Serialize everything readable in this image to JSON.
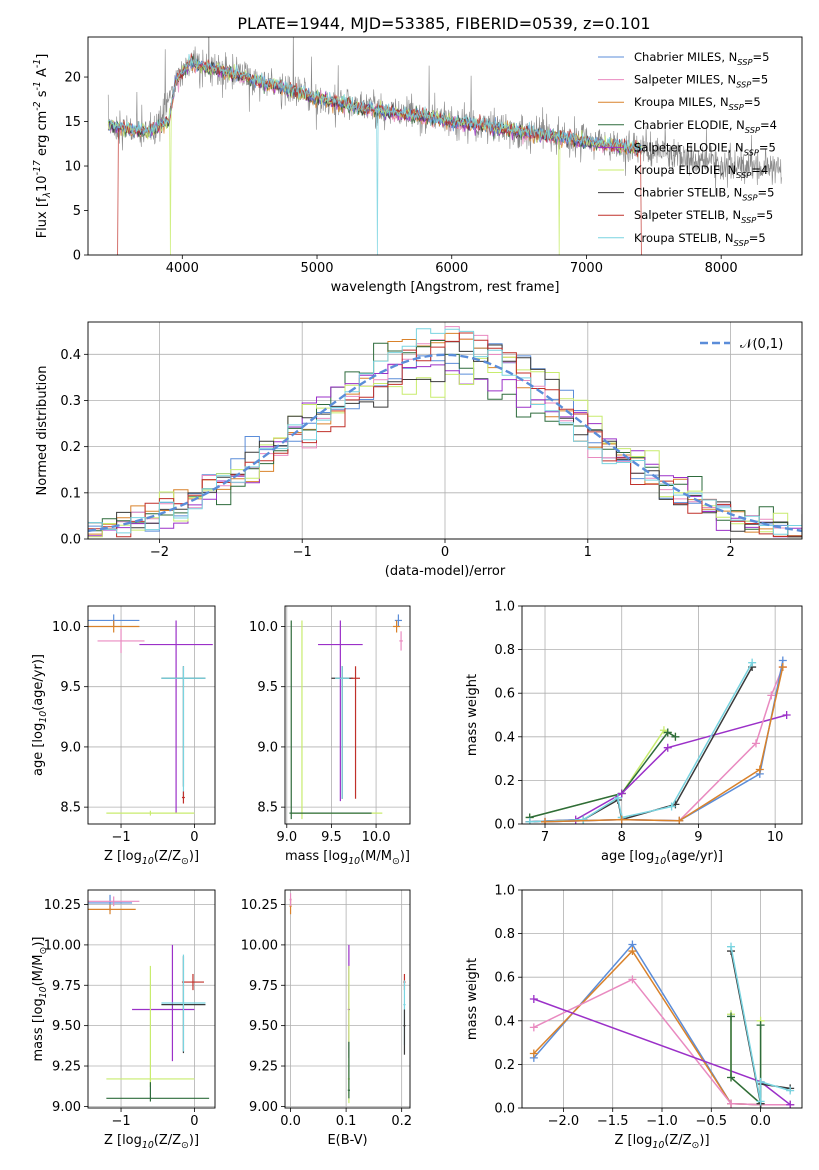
{
  "figure_title": "PLATE=1944, MJD=53385, FIBERID=0539, z=0.101",
  "colors": {
    "Chabrier MILES": "#5b8dd9",
    "Salpeter MILES": "#e98ac0",
    "Kroupa MILES": "#d9822b",
    "Chabrier ELODIE": "#2e6b3c",
    "Salpeter ELODIE": "#9b30c8",
    "Kroupa ELODIE": "#c8ec6e",
    "Chabrier STELIB": "#3a3a3a",
    "Salpeter STELIB": "#c0302a",
    "Kroupa STELIB": "#79d4e0",
    "gaussian": "#5b8dd9"
  },
  "chart_data": [
    {
      "id": "spectrum",
      "type": "line",
      "title": "PLATE=1944, MJD=53385, FIBERID=0539, z=0.101",
      "xlabel": "wavelength [Angstrom, rest frame]",
      "ylabel": "Flux [f$_\\lambda$10$^{-17}$ erg cm$^{-2}$ s$^{-1}$ A$^{-1}$]",
      "xlim": [
        3300,
        8600
      ],
      "ylim": [
        0,
        24.5
      ],
      "xticks": [
        4000,
        5000,
        6000,
        7000,
        8000
      ],
      "yticks": [
        0,
        5,
        10,
        15,
        20
      ],
      "grid": false,
      "legend_position": "top-right",
      "legend": [
        "Chabrier MILES, N$_{SSP}$=5",
        "Salpeter MILES, N$_{SSP}$=5",
        "Kroupa MILES, N$_{SSP}$=5",
        "Chabrier ELODIE, N$_{SSP}$=4",
        "Salpeter ELODIE, N$_{SSP}$=5",
        "Kroupa ELODIE, N$_{SSP}$=4",
        "Chabrier STELIB, N$_{SSP}$=5",
        "Salpeter STELIB, N$_{SSP}$=5",
        "Kroupa STELIB, N$_{SSP}$=5"
      ],
      "continuum": {
        "x": [
          3450,
          3600,
          3750,
          3900,
          3950,
          4050,
          4200,
          4400,
          4600,
          4800,
          5000,
          5200,
          5400,
          5600,
          5800,
          6000,
          6200,
          6400,
          6600,
          6800,
          7000,
          7200,
          7400,
          7600
        ],
        "y": [
          14.6,
          14.2,
          13.8,
          15.0,
          19.5,
          21.6,
          21.0,
          20.3,
          19.4,
          18.6,
          17.6,
          16.9,
          16.4,
          15.9,
          15.5,
          15.0,
          14.6,
          14.1,
          13.6,
          13.2,
          12.7,
          12.3,
          11.9,
          11.4
        ]
      },
      "observed_continuum": {
        "x": [
          3450,
          3600,
          3800,
          3950,
          4050,
          4300,
          4600,
          5000,
          5500,
          6000,
          6500,
          7000,
          7500,
          8000,
          8400
        ],
        "y": [
          14.5,
          14.0,
          13.8,
          19.5,
          21.5,
          20.8,
          19.5,
          17.7,
          16.2,
          15.0,
          13.9,
          12.8,
          11.4,
          10.3,
          9.8
        ]
      },
      "model_drops": [
        {
          "series": "Salpeter STELIB",
          "x": 3520
        },
        {
          "series": "Salpeter STELIB",
          "x": 7410
        },
        {
          "series": "Kroupa ELODIE",
          "x": 3910
        },
        {
          "series": "Kroupa ELODIE",
          "x": 6800
        },
        {
          "series": "Kroupa STELIB",
          "x": 5450
        }
      ]
    },
    {
      "id": "residuals",
      "type": "histogram",
      "xlabel": "(data-model)/error",
      "ylabel": "Normed distribution",
      "xlim": [
        -2.5,
        2.5
      ],
      "ylim": [
        0,
        0.47
      ],
      "xticks": [
        -2,
        -1,
        0,
        1,
        2
      ],
      "yticks": [
        0.0,
        0.1,
        0.2,
        0.3,
        0.4
      ],
      "grid": true,
      "legend_position": "top-right",
      "legend": [
        "$\\mathcal{N}(0,1)$"
      ],
      "bin_width": 0.1
    },
    {
      "id": "age_vs_Z",
      "type": "errorbar",
      "xlabel": "Z [log$_{10}$(Z/Z$_\\odot$)]",
      "ylabel": "age  [log$_{10}$(age/yr)]",
      "xlim": [
        -1.45,
        0.28
      ],
      "ylim": [
        8.36,
        10.17
      ],
      "xticks": [
        -1,
        0
      ],
      "yticks": [
        8.5,
        9.0,
        9.5,
        10.0
      ],
      "grid": true,
      "points": [
        {
          "series": "Chabrier MILES",
          "x": -1.1,
          "y": 10.05,
          "xerr": [
            0.35,
            0.35
          ],
          "yerr": [
            0.05,
            0.05
          ]
        },
        {
          "series": "Kroupa MILES",
          "x": -1.1,
          "y": 10.0,
          "xerr": [
            0.35,
            0.35
          ],
          "yerr": [
            0.05,
            0.05
          ]
        },
        {
          "series": "Salpeter MILES",
          "x": -1.0,
          "y": 9.88,
          "xerr": [
            0.32,
            0.32
          ],
          "yerr": [
            0.1,
            0.1
          ]
        },
        {
          "series": "Salpeter ELODIE",
          "x": -0.25,
          "y": 9.85,
          "xerr": [
            0.5,
            0.5
          ],
          "yerr": [
            1.4,
            0.2
          ]
        },
        {
          "series": "Chabrier STELIB",
          "x": -0.15,
          "y": 9.57,
          "xerr": [
            0.3,
            0.3
          ],
          "yerr": [
            0.9,
            0.1
          ]
        },
        {
          "series": "Kroupa STELIB",
          "x": -0.15,
          "y": 9.57,
          "xerr": [
            0.3,
            0.3
          ],
          "yerr": [
            1.0,
            0.1
          ]
        },
        {
          "series": "Salpeter STELIB",
          "x": -0.15,
          "y": 8.58,
          "xerr": [
            0.02,
            0.02
          ],
          "yerr": [
            0.05,
            0.05
          ]
        },
        {
          "series": "Kroupa ELODIE",
          "x": -0.6,
          "y": 8.45,
          "xerr": [
            0.6,
            0.6
          ],
          "yerr": [
            0.02,
            0.02
          ]
        }
      ]
    },
    {
      "id": "age_vs_mass",
      "type": "errorbar",
      "xlabel": "mass [log$_{10}$(M/M$_\\odot$)]",
      "ylabel": "",
      "xlim": [
        8.98,
        10.38
      ],
      "ylim": [
        8.36,
        10.17
      ],
      "xticks": [
        9.0,
        9.5,
        10.0
      ],
      "yticks": [
        8.5,
        9.0,
        9.5,
        10.0
      ],
      "grid": true,
      "points": [
        {
          "series": "Chabrier MILES",
          "x": 10.25,
          "y": 10.05,
          "xerr": [
            0.04,
            0.04
          ],
          "yerr": [
            0.05,
            0.05
          ]
        },
        {
          "series": "Kroupa MILES",
          "x": 10.23,
          "y": 10.0,
          "xerr": [
            0.04,
            0.04
          ],
          "yerr": [
            0.05,
            0.05
          ]
        },
        {
          "series": "Salpeter MILES",
          "x": 10.28,
          "y": 9.88,
          "xerr": [
            0.02,
            0.02
          ],
          "yerr": [
            0.08,
            0.08
          ]
        },
        {
          "series": "Salpeter ELODIE",
          "x": 9.6,
          "y": 9.85,
          "xerr": [
            0.25,
            0.25
          ],
          "yerr": [
            1.3,
            0.2
          ]
        },
        {
          "series": "Chabrier STELIB",
          "x": 9.62,
          "y": 9.57,
          "xerr": [
            0.12,
            0.12
          ],
          "yerr": [
            1.0,
            0.1
          ]
        },
        {
          "series": "Kroupa STELIB",
          "x": 9.62,
          "y": 9.57,
          "xerr": [
            0.08,
            0.08
          ],
          "yerr": [
            1.0,
            0.1
          ]
        },
        {
          "series": "Salpeter STELIB",
          "x": 9.77,
          "y": 9.57,
          "xerr": [
            0.05,
            0.05
          ],
          "yerr": [
            1.0,
            0.1
          ]
        },
        {
          "series": "Kroupa ELODIE",
          "x": 9.17,
          "y": 8.45,
          "xerr": [
            0.12,
            0.9
          ],
          "yerr": [
            0.05,
            1.6
          ]
        },
        {
          "series": "Chabrier ELODIE",
          "x": 9.05,
          "y": 8.45,
          "xerr": [
            0.02,
            0.9
          ],
          "yerr": [
            0.05,
            1.6
          ]
        }
      ]
    },
    {
      "id": "weight_vs_age",
      "type": "line",
      "xlabel": "age  [log$_{10}$(age/yr)]",
      "ylabel": "mass weight",
      "xlim": [
        6.7,
        10.35
      ],
      "ylim": [
        0,
        1
      ],
      "xticks": [
        7,
        8,
        9,
        10
      ],
      "yticks": [
        0.0,
        0.2,
        0.4,
        0.6,
        0.8,
        1.0
      ],
      "grid": true,
      "series": [
        {
          "name": "Kroupa ELODIE",
          "x": [
            6.8,
            8.0,
            8.55,
            8.6,
            8.7
          ],
          "y": [
            0.03,
            0.14,
            0.43,
            0.42,
            0.4
          ]
        },
        {
          "name": "Chabrier ELODIE",
          "x": [
            6.8,
            8.0,
            8.6,
            8.7
          ],
          "y": [
            0.03,
            0.14,
            0.42,
            0.4
          ]
        },
        {
          "name": "Salpeter ELODIE",
          "x": [
            6.8,
            7.4,
            8.0,
            8.6,
            10.15
          ],
          "y": [
            0.01,
            0.02,
            0.14,
            0.35,
            0.5
          ]
        },
        {
          "name": "Chabrier STELIB",
          "x": [
            6.8,
            7.5,
            7.95,
            8.0,
            8.7,
            9.7
          ],
          "y": [
            0.01,
            0.02,
            0.11,
            0.02,
            0.09,
            0.72
          ]
        },
        {
          "name": "Kroupa STELIB",
          "x": [
            6.8,
            7.5,
            7.95,
            8.0,
            8.65,
            9.7
          ],
          "y": [
            0.01,
            0.02,
            0.12,
            0.03,
            0.08,
            0.74
          ]
        },
        {
          "name": "Salpeter MILES",
          "x": [
            7.0,
            8.0,
            8.75,
            9.75,
            9.95,
            10.1
          ],
          "y": [
            0.01,
            0.02,
            0.015,
            0.37,
            0.59,
            0.72
          ]
        },
        {
          "name": "Chabrier MILES",
          "x": [
            7.0,
            8.0,
            8.75,
            9.8,
            10.1
          ],
          "y": [
            0.01,
            0.02,
            0.015,
            0.23,
            0.75
          ]
        },
        {
          "name": "Kroupa MILES",
          "x": [
            7.0,
            8.0,
            8.75,
            9.8,
            10.1
          ],
          "y": [
            0.01,
            0.02,
            0.015,
            0.25,
            0.72
          ]
        }
      ]
    },
    {
      "id": "mass_vs_Z",
      "type": "errorbar",
      "xlabel": "Z [log$_{10}$(Z/Z$_\\odot$)]",
      "ylabel": "mass [log$_{10}$(M/M$_\\odot$)]",
      "xlim": [
        -1.45,
        0.28
      ],
      "ylim": [
        8.99,
        10.34
      ],
      "xticks": [
        -1,
        0
      ],
      "yticks": [
        9.0,
        9.25,
        9.5,
        9.75,
        10.0,
        10.25
      ],
      "grid": true,
      "points": [
        {
          "series": "Chabrier MILES",
          "x": -1.15,
          "y": 10.26,
          "xerr": [
            0.3,
            0.3
          ],
          "yerr": [
            0.05,
            0.05
          ]
        },
        {
          "series": "Salpeter MILES",
          "x": -1.1,
          "y": 10.27,
          "xerr": [
            0.35,
            0.35
          ],
          "yerr": [
            0.03,
            0.03
          ]
        },
        {
          "series": "Kroupa MILES",
          "x": -1.15,
          "y": 10.22,
          "xerr": [
            0.35,
            0.35
          ],
          "yerr": [
            0.03,
            0.03
          ]
        },
        {
          "series": "Salpeter ELODIE",
          "x": -0.3,
          "y": 9.6,
          "xerr": [
            0.55,
            0.3
          ],
          "yerr": [
            0.32,
            0.4
          ]
        },
        {
          "series": "Salpeter STELIB",
          "x": -0.02,
          "y": 9.77,
          "xerr": [
            0.15,
            0.15
          ],
          "yerr": [
            0.05,
            0.05
          ]
        },
        {
          "series": "Chabrier STELIB",
          "x": -0.15,
          "y": 9.63,
          "xerr": [
            0.3,
            0.3
          ],
          "yerr": [
            0.3,
            0.3
          ]
        },
        {
          "series": "Kroupa STELIB",
          "x": -0.15,
          "y": 9.64,
          "xerr": [
            0.3,
            0.3
          ],
          "yerr": [
            0.3,
            0.3
          ]
        },
        {
          "series": "Kroupa ELODIE",
          "x": -0.6,
          "y": 9.17,
          "xerr": [
            0.6,
            0.6
          ],
          "yerr": [
            0.05,
            0.7
          ]
        },
        {
          "series": "Chabrier ELODIE",
          "x": -0.6,
          "y": 9.05,
          "xerr": [
            0.6,
            0.8
          ],
          "yerr": [
            0.02,
            0.1
          ]
        }
      ]
    },
    {
      "id": "mass_vs_ebv",
      "type": "errorbar",
      "xlabel": "E(B-V)",
      "ylabel": "",
      "xlim": [
        -0.01,
        0.215
      ],
      "ylim": [
        8.99,
        10.34
      ],
      "xticks": [
        0.0,
        0.1,
        0.2
      ],
      "yticks": [
        9.0,
        9.25,
        9.5,
        9.75,
        10.0,
        10.25
      ],
      "grid": true,
      "points": [
        {
          "series": "Kroupa MILES",
          "x": 0.0,
          "y": 10.24,
          "xerr": [
            0.002,
            0.002
          ],
          "yerr": [
            0.05,
            0.05
          ]
        },
        {
          "series": "Salpeter MILES",
          "x": 0.0,
          "y": 10.28,
          "xerr": [
            0.002,
            0.002
          ],
          "yerr": [
            0.04,
            0.04
          ]
        },
        {
          "series": "Salpeter ELODIE",
          "x": 0.105,
          "y": 9.6,
          "xerr": [
            0.002,
            0.002
          ],
          "yerr": [
            0.3,
            0.4
          ]
        },
        {
          "series": "Kroupa ELODIE",
          "x": 0.105,
          "y": 9.17,
          "xerr": [
            0.002,
            0.002
          ],
          "yerr": [
            0.15,
            0.7
          ]
        },
        {
          "series": "Chabrier ELODIE",
          "x": 0.105,
          "y": 9.1,
          "xerr": [
            0.002,
            0.002
          ],
          "yerr": [
            0.05,
            0.3
          ]
        },
        {
          "series": "Salpeter STELIB",
          "x": 0.205,
          "y": 9.77,
          "xerr": [
            0.002,
            0.002
          ],
          "yerr": [
            0.05,
            0.05
          ]
        },
        {
          "series": "Kroupa STELIB",
          "x": 0.205,
          "y": 9.63,
          "xerr": [
            0.002,
            0.002
          ],
          "yerr": [
            0.25,
            0.15
          ]
        },
        {
          "series": "Chabrier STELIB",
          "x": 0.205,
          "y": 9.5,
          "xerr": [
            0.002,
            0.002
          ],
          "yerr": [
            0.18,
            0.1
          ]
        }
      ]
    },
    {
      "id": "weight_vs_Z",
      "type": "line",
      "xlabel": "Z [log$_{10}$(Z/Z$_\\odot$)]",
      "ylabel": "mass weight",
      "xlim": [
        -2.42,
        0.42
      ],
      "ylim": [
        0,
        1
      ],
      "xticks": [
        -2.0,
        -1.5,
        -1.0,
        -0.5,
        0.0
      ],
      "yticks": [
        0.0,
        0.2,
        0.4,
        0.6,
        0.8,
        1.0
      ],
      "grid": true,
      "series": [
        {
          "name": "Chabrier MILES",
          "x": [
            -2.3,
            -1.3,
            -0.3,
            0.0,
            0.3
          ],
          "y": [
            0.23,
            0.75,
            0.02,
            0.015,
            0.015
          ]
        },
        {
          "name": "Kroupa MILES",
          "x": [
            -2.3,
            -1.3,
            -0.3,
            0.0,
            0.3
          ],
          "y": [
            0.25,
            0.72,
            0.02,
            0.015,
            0.015
          ]
        },
        {
          "name": "Salpeter MILES",
          "x": [
            -2.3,
            -1.3,
            -0.3,
            0.0,
            0.3
          ],
          "y": [
            0.37,
            0.59,
            0.02,
            0.015,
            0.015
          ]
        },
        {
          "name": "Salpeter ELODIE",
          "x": [
            -2.3,
            0.0,
            0.3
          ],
          "y": [
            0.5,
            0.12,
            0.015
          ]
        },
        {
          "name": "Kroupa ELODIE",
          "x": [
            -0.3,
            -0.3,
            0.0,
            0.0
          ],
          "y": [
            0.43,
            0.14,
            0.02,
            0.4
          ]
        },
        {
          "name": "Chabrier ELODIE",
          "x": [
            -0.3,
            -0.3,
            0.0,
            0.0
          ],
          "y": [
            0.42,
            0.14,
            0.02,
            0.38
          ]
        },
        {
          "name": "Chabrier STELIB",
          "x": [
            -0.3,
            0.0,
            0.0,
            0.3
          ],
          "y": [
            0.72,
            0.02,
            0.11,
            0.09
          ]
        },
        {
          "name": "Kroupa STELIB",
          "x": [
            -0.3,
            0.0,
            0.0,
            0.3
          ],
          "y": [
            0.74,
            0.03,
            0.12,
            0.08
          ]
        }
      ]
    }
  ]
}
